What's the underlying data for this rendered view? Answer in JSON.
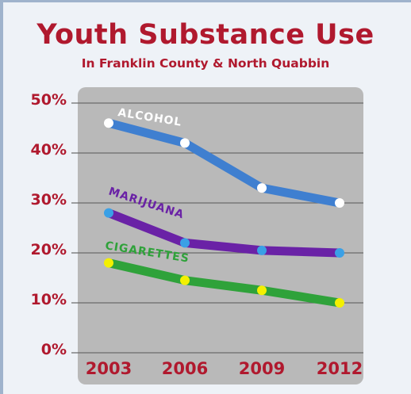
{
  "title": "Youth Substance Use",
  "subtitle": "In Franklin County & North Quabbin",
  "chart_data": {
    "type": "line",
    "title": "Youth Substance Use",
    "subtitle": "In Franklin County & North Quabbin",
    "categories": [
      "2003",
      "2006",
      "2009",
      "2012"
    ],
    "ylim": [
      0,
      50
    ],
    "yticks": [
      "0%",
      "10%",
      "20%",
      "30%",
      "40%",
      "50%"
    ],
    "grid": true,
    "series": [
      {
        "name": "ALCOHOL",
        "values": [
          46,
          42,
          33,
          30
        ],
        "color": "#3f7fd0",
        "marker": "#ffffff"
      },
      {
        "name": "MARIJUANA",
        "values": [
          28,
          22,
          20.5,
          20
        ],
        "color": "#6a22a6",
        "marker": "#3aa0e6"
      },
      {
        "name": "CIGARETTES",
        "values": [
          18,
          14.5,
          12.5,
          10
        ],
        "color": "#2fa23a",
        "marker": "#f3f000"
      }
    ]
  }
}
